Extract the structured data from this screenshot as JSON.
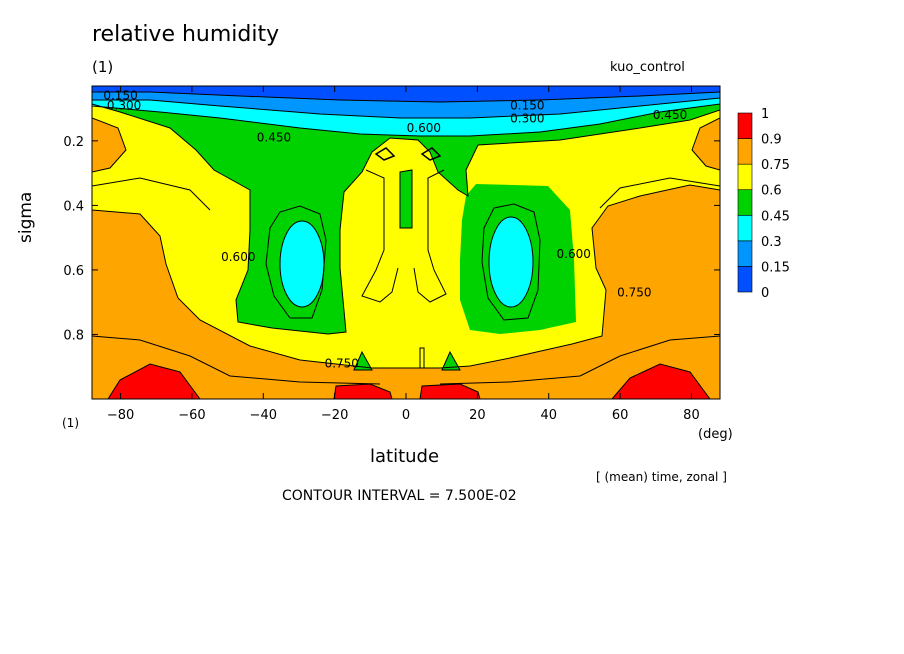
{
  "figure": {
    "title": "relative humidity",
    "panel_label": "(1)",
    "run_label": "kuo_control",
    "corner_label": "(1)",
    "x_unit": "(deg)",
    "averaging_note": "[ (mean) time, zonal ]",
    "contour_interval_note": "CONTOUR INTERVAL = 7.500E-02"
  },
  "chart_data": {
    "type": "heatmap",
    "subtype": "filled-contour",
    "title": "relative humidity",
    "xlabel": "latitude",
    "ylabel": "sigma",
    "xlim": [
      -88,
      88
    ],
    "ylim": [
      1.0,
      0.03
    ],
    "y_inverted": true,
    "x_ticks": [
      -80,
      -60,
      -40,
      -20,
      0,
      20,
      40,
      60,
      80
    ],
    "x_tick_labels": [
      "−80",
      "−60",
      "−40",
      "−20",
      "0",
      "20",
      "40",
      "60",
      "80"
    ],
    "y_ticks": [
      0.2,
      0.4,
      0.6,
      0.8
    ],
    "y_tick_labels": [
      "0.2",
      "0.4",
      "0.6",
      "0.8"
    ],
    "contour_interval": 0.075,
    "colorbar": {
      "levels": [
        0,
        0.15,
        0.3,
        0.45,
        0.6,
        0.75,
        0.9,
        1
      ],
      "labels": [
        "0",
        "0.15",
        "0.3",
        "0.45",
        "0.6",
        "0.75",
        "0.9",
        "1"
      ],
      "colors": [
        "#0050ff",
        "#0096ff",
        "#00ffff",
        "#00d200",
        "#ffff00",
        "#ffa500",
        "#ff0000"
      ]
    },
    "contour_labels": [
      {
        "text": "0.150",
        "x": -80,
        "y": 0.06
      },
      {
        "text": "0.300",
        "x": -79,
        "y": 0.09
      },
      {
        "text": "0.150",
        "x": 34,
        "y": 0.09
      },
      {
        "text": "0.300",
        "x": 34,
        "y": 0.13
      },
      {
        "text": "0.450",
        "x": -37,
        "y": 0.19
      },
      {
        "text": "0.450",
        "x": 74,
        "y": 0.12
      },
      {
        "text": "0.600",
        "x": 5,
        "y": 0.16
      },
      {
        "text": "0.600",
        "x": -47,
        "y": 0.56
      },
      {
        "text": "0.600",
        "x": 47,
        "y": 0.55
      },
      {
        "text": "0.750",
        "x": 64,
        "y": 0.67
      },
      {
        "text": "0.750",
        "x": -18,
        "y": 0.89
      }
    ]
  }
}
